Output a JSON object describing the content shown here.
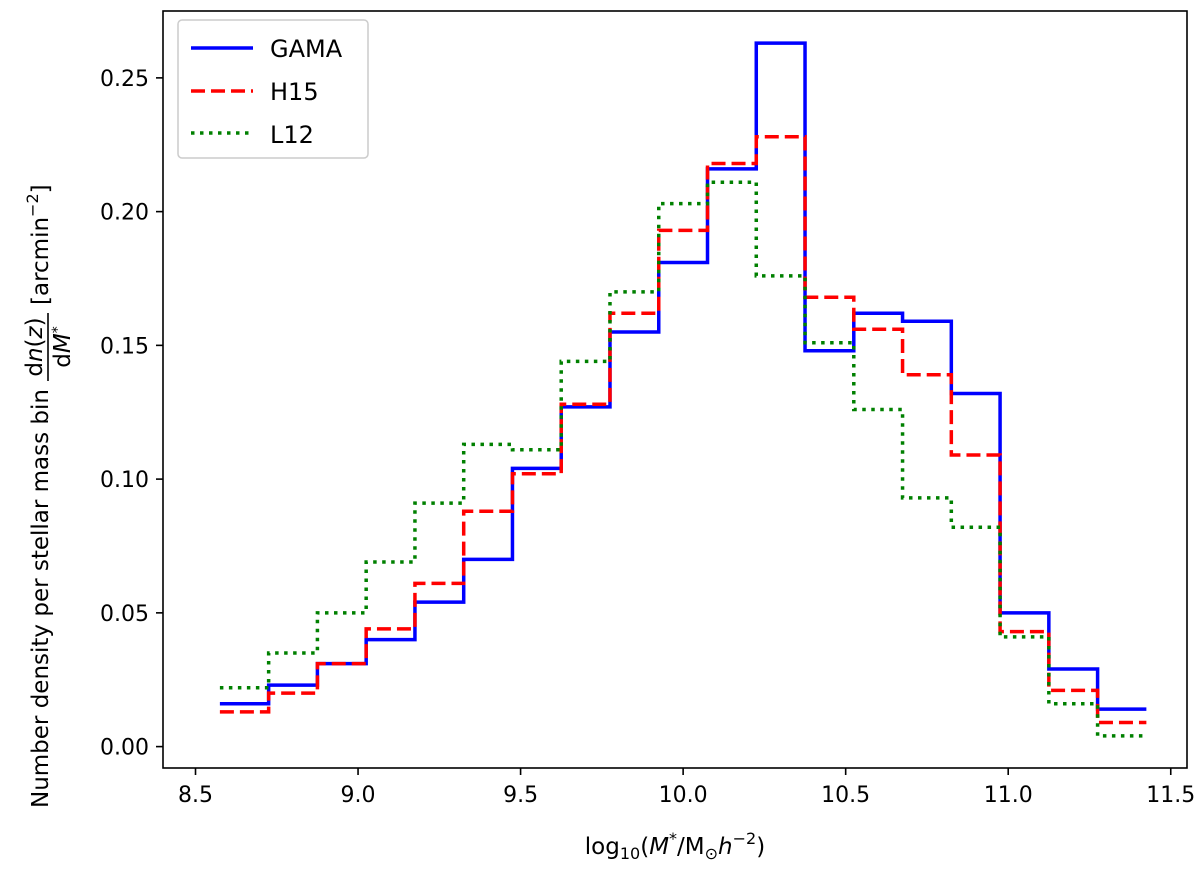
{
  "chart_data": {
    "type": "line",
    "step": "post",
    "xlabel": "log10(M*/M⊙h−2)",
    "ylabel": "Number density per stellar mass bin dn(z)/dM* [arcmin−2]",
    "xlim": [
      8.4,
      11.55
    ],
    "ylim": [
      -0.008,
      0.275
    ],
    "x_ticks": [
      "8.5",
      "9.0",
      "9.5",
      "10.0",
      "10.5",
      "11.0",
      "11.5"
    ],
    "y_ticks": [
      "0.00",
      "0.05",
      "0.10",
      "0.15",
      "0.20",
      "0.25"
    ],
    "bin_edges": [
      8.575,
      8.725,
      8.875,
      9.025,
      9.175,
      9.325,
      9.475,
      9.625,
      9.775,
      9.925,
      10.075,
      10.225,
      10.375,
      10.525,
      10.675,
      10.825,
      10.975,
      11.125,
      11.275,
      11.425
    ],
    "legend_position": "upper-left",
    "series": [
      {
        "name": "GAMA",
        "color": "#0000ff",
        "dash": "solid",
        "values": [
          0.016,
          0.023,
          0.031,
          0.04,
          0.054,
          0.07,
          0.104,
          0.127,
          0.155,
          0.181,
          0.216,
          0.263,
          0.148,
          0.162,
          0.159,
          0.132,
          0.05,
          0.029,
          0.014
        ]
      },
      {
        "name": "H15",
        "color": "#ff0000",
        "dash": "dashed",
        "values": [
          0.013,
          0.02,
          0.031,
          0.044,
          0.061,
          0.088,
          0.102,
          0.128,
          0.162,
          0.193,
          0.218,
          0.228,
          0.168,
          0.156,
          0.139,
          0.109,
          0.043,
          0.021,
          0.009
        ]
      },
      {
        "name": "L12",
        "color": "#008000",
        "dash": "dotted",
        "values": [
          0.022,
          0.035,
          0.05,
          0.069,
          0.091,
          0.113,
          0.111,
          0.144,
          0.17,
          0.203,
          0.211,
          0.176,
          0.151,
          0.126,
          0.093,
          0.082,
          0.041,
          0.016,
          0.004
        ]
      }
    ]
  }
}
